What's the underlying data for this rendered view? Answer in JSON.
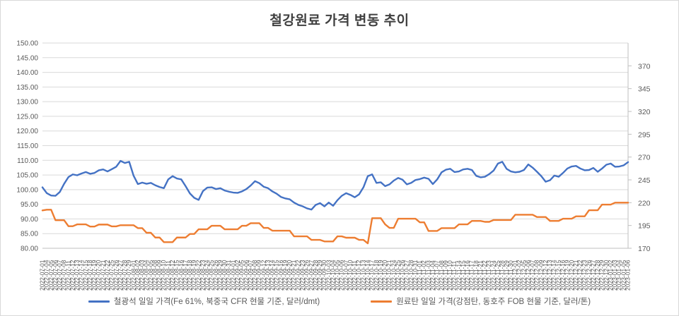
{
  "title": "철강원료 가격 변동 추이",
  "colors": {
    "iron_ore": "#4472C4",
    "coking_coal": "#ED7D31",
    "gridline": "#D9D9D9",
    "axis_line": "#BFBFBF",
    "tick_text": "#595959",
    "title_text": "#404040"
  },
  "chart_data": {
    "type": "line",
    "title": "철강원료 가격 변동 추이",
    "grid": true,
    "legend_position": "bottom",
    "left_axis": {
      "min": 80,
      "max": 150,
      "step": 5,
      "ticks": [
        150,
        145,
        140,
        135,
        130,
        125,
        120,
        115,
        110,
        105,
        100,
        95,
        90,
        85,
        80
      ],
      "format": "0.00"
    },
    "right_axis": {
      "min": 170,
      "max": 395,
      "ticks": [
        370,
        345,
        320,
        295,
        270,
        245,
        220,
        195,
        170
      ]
    },
    "x_labels": [
      "2022-07-01",
      "2022-07-04",
      "2022-07-05",
      "2022-07-06",
      "2022-07-07",
      "2022-07-08",
      "2022-07-11",
      "2022-07-12",
      "2022-07-13",
      "2022-07-14",
      "2022-07-15",
      "2022-07-18",
      "2022-07-19",
      "2022-07-20",
      "2022-07-21",
      "2022-07-22",
      "2022-07-25",
      "2022-07-26",
      "2022-07-27",
      "2022-07-28",
      "2022-07-29",
      "2022-08-01",
      "2022-08-02",
      "2022-08-03",
      "2022-08-04",
      "2022-08-05",
      "2022-08-08",
      "2022-08-09",
      "2022-08-10",
      "2022-08-11",
      "2022-08-12",
      "2022-08-15",
      "2022-08-16",
      "2022-08-17",
      "2022-08-18",
      "2022-08-19",
      "2022-08-22",
      "2022-08-23",
      "2022-08-24",
      "2022-08-25",
      "2022-08-26",
      "2022-08-29",
      "2022-08-30",
      "2022-08-31",
      "2022-09-01",
      "2022-09-02",
      "2022-09-05",
      "2022-09-06",
      "2022-09-07",
      "2022-09-08",
      "2022-09-09",
      "2022-09-12",
      "2022-09-13",
      "2022-09-14",
      "2022-09-15",
      "2022-09-16",
      "2022-09-19",
      "2022-09-20",
      "2022-09-21",
      "2022-09-22",
      "2022-09-23",
      "2022-09-26",
      "2022-09-27",
      "2022-09-28",
      "2022-09-29",
      "2022-09-30",
      "2022-10-03",
      "2022-10-04",
      "2022-10-05",
      "2022-10-06",
      "2022-10-07",
      "2022-10-10",
      "2022-10-11",
      "2022-10-12",
      "2022-10-13",
      "2022-10-14",
      "2022-10-17",
      "2022-10-18",
      "2022-10-19",
      "2022-10-20",
      "2022-10-21",
      "2022-10-24",
      "2022-10-25",
      "2022-10-26",
      "2022-10-27",
      "2022-10-28",
      "2022-10-31",
      "2022-11-01",
      "2022-11-02",
      "2022-11-03",
      "2022-11-04",
      "2022-11-07",
      "2022-11-08",
      "2022-11-09",
      "2022-11-10",
      "2022-11-11",
      "2022-11-14",
      "2022-11-15",
      "2022-11-16",
      "2022-11-17",
      "2022-11-18",
      "2022-11-21",
      "2022-11-22",
      "2022-11-23",
      "2022-11-24",
      "2022-11-25",
      "2022-11-28",
      "2022-11-29",
      "2022-11-30",
      "2022-12-01",
      "2022-12-02",
      "2022-12-05",
      "2022-12-06",
      "2022-12-07",
      "2022-12-08",
      "2022-12-09",
      "2022-12-12",
      "2022-12-13",
      "2022-12-14",
      "2022-12-15",
      "2022-12-16",
      "2022-12-19",
      "2022-12-20",
      "2022-12-21",
      "2022-12-22",
      "2022-12-23",
      "2022-12-26",
      "2022-12-27",
      "2022-12-28",
      "2022-12-29",
      "2022-12-30",
      "2023-01-02",
      "2023-01-03",
      "2023-01-04",
      "2023-01-05",
      "2023-01-06"
    ],
    "series": [
      {
        "name": "철광석 일일 가격(Fe 61%, 북중국 CFR 현물 기준, 달러/dmt)",
        "axis": "left",
        "color": "#4472C4",
        "values": [
          100.8,
          98.8,
          98,
          97.9,
          99.2,
          102,
          104.3,
          105.2,
          104.9,
          105.5,
          106,
          105.4,
          105.7,
          106.6,
          106.9,
          106.2,
          107,
          107.8,
          109.8,
          109.1,
          109.5,
          104.8,
          101.9,
          102.4,
          102,
          102.3,
          101.5,
          100.9,
          100.5,
          103.5,
          104.6,
          103.8,
          103.5,
          101.2,
          98.7,
          97.2,
          96.5,
          99.5,
          100.7,
          100.8,
          100.2,
          100.5,
          99.7,
          99.3,
          99,
          98.9,
          99.4,
          100.2,
          101.4,
          102.9,
          102.2,
          101,
          100.5,
          99.4,
          98.6,
          97.5,
          97,
          96.7,
          95.6,
          94.8,
          94.3,
          93.6,
          93.2,
          94.8,
          95.4,
          94.3,
          95.6,
          94.5,
          96.4,
          97.9,
          98.8,
          98.2,
          97.4,
          98.4,
          100.8,
          104.6,
          105.2,
          102.3,
          102.5,
          101.2,
          101.8,
          103.1,
          104,
          103.4,
          101.8,
          102.3,
          103.3,
          103.6,
          104.1,
          103.7,
          101.9,
          103.5,
          105.9,
          106.8,
          107.1,
          106,
          106.2,
          106.9,
          107.1,
          106.7,
          104.7,
          104.2,
          104.4,
          105.3,
          106.5,
          108.9,
          109.5,
          107.1,
          106.2,
          105.9,
          106.1,
          106.7,
          108.6,
          107.5,
          106.1,
          104.6,
          102.7,
          103.2,
          104.8,
          104.4,
          105.7,
          107.2,
          107.9,
          108.1,
          107.2,
          106.6,
          106.7,
          107.4,
          106.1,
          107.2,
          108.5,
          108.9,
          107.8,
          107.9,
          108.3,
          109.4
        ]
      },
      {
        "name": "원료탄 일일 가격(강점탄, 동호주 FOB 현물 기준, 달러/톤)",
        "axis": "right",
        "color": "#ED7D31",
        "values": [
          211.5,
          212.3,
          212.3,
          200.8,
          200.8,
          200.8,
          194.2,
          194.2,
          196.2,
          196.2,
          196.2,
          193.8,
          193.8,
          196,
          196,
          196,
          194,
          194,
          195.3,
          195.3,
          195.3,
          195.3,
          192.1,
          192.1,
          187,
          187,
          181.8,
          181.8,
          176.7,
          176.7,
          176.7,
          181.8,
          181.8,
          181.8,
          185.7,
          185.7,
          190.8,
          190.8,
          190.8,
          194.7,
          194.7,
          194.7,
          190.8,
          190.8,
          190.8,
          190.8,
          194.7,
          194.7,
          197.5,
          197.5,
          197.5,
          192.4,
          192.4,
          189.3,
          189.3,
          189.3,
          189.3,
          189.3,
          183.1,
          183.1,
          183.1,
          183.1,
          179.2,
          179.2,
          179.2,
          177.5,
          177.5,
          177.5,
          183.1,
          183.1,
          181.6,
          181.6,
          181.6,
          179.2,
          179.2,
          175.4,
          203,
          203,
          203,
          196.2,
          192.4,
          192.4,
          202.4,
          202.4,
          202.4,
          202.4,
          202.4,
          198.5,
          198.5,
          189,
          189,
          189,
          192.1,
          192.1,
          192.1,
          192.1,
          196.2,
          196.2,
          196.2,
          200,
          200,
          200,
          199,
          199,
          201,
          201,
          201,
          201,
          201,
          206.8,
          206.8,
          206.8,
          206.8,
          206.8,
          204.3,
          204.3,
          204.3,
          200,
          200,
          200,
          202.4,
          202.4,
          202.4,
          205,
          205,
          205,
          211.7,
          211.7,
          211.7,
          217.9,
          217.9,
          217.9,
          220,
          220,
          220,
          220
        ]
      }
    ]
  }
}
